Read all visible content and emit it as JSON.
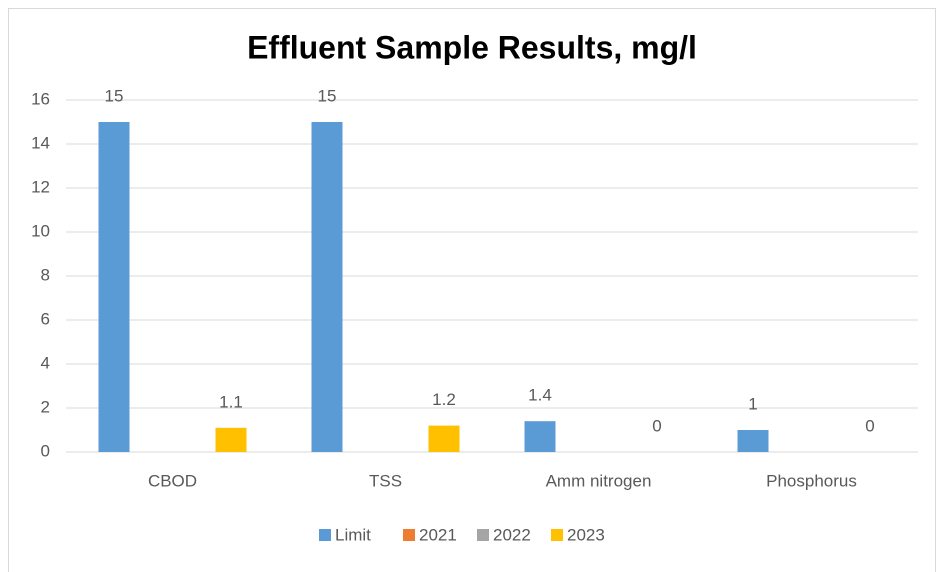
{
  "chart_data": {
    "type": "bar",
    "title": "Effluent Sample Results, mg/l",
    "categories": [
      "CBOD",
      "TSS",
      "Amm nitrogen",
      "Phosphorus"
    ],
    "series": [
      {
        "name": "Limit",
        "color": "#5b9bd5",
        "values": [
          15,
          15,
          1.4,
          1
        ],
        "data_labels": true
      },
      {
        "name": "2021",
        "color": "#ed7d31",
        "values": [
          null,
          null,
          null,
          null
        ],
        "data_labels": false
      },
      {
        "name": "2022",
        "color": "#a5a5a5",
        "values": [
          null,
          null,
          null,
          null
        ],
        "data_labels": false
      },
      {
        "name": "2023",
        "color": "#ffc000",
        "values": [
          1.1,
          1.2,
          0,
          0
        ],
        "data_labels": true
      }
    ],
    "ylim": [
      0,
      16
    ],
    "yticks": [
      0,
      2,
      4,
      6,
      8,
      10,
      12,
      14,
      16
    ],
    "grid": true,
    "legend": "bottom"
  }
}
